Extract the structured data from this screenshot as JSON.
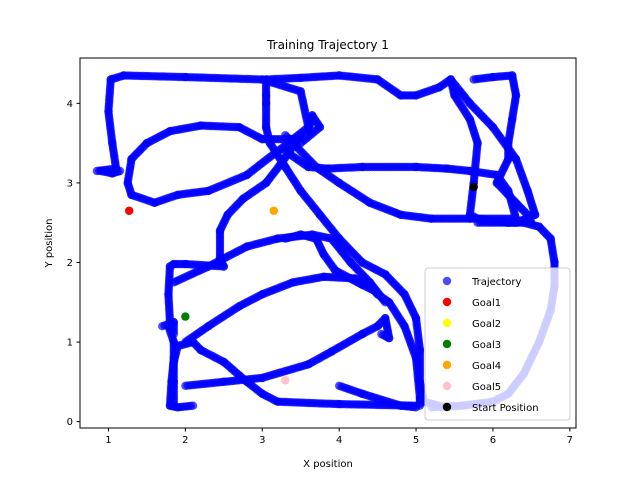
{
  "chart_data": {
    "type": "scatter",
    "title": "Training Trajectory 1",
    "xlabel": "X position",
    "ylabel": "Y position",
    "xlim": [
      0.63,
      7.08
    ],
    "ylim": [
      -0.08,
      4.57
    ],
    "xticks": [
      "1",
      "2",
      "3",
      "4",
      "5",
      "6",
      "7"
    ],
    "yticks": [
      "0",
      "1",
      "2",
      "3",
      "4"
    ],
    "xtick_values": [
      1,
      2,
      3,
      4,
      5,
      6,
      7
    ],
    "ytick_values": [
      0,
      1,
      2,
      3,
      4
    ],
    "grid": false,
    "legend_position": "lower-right",
    "trajectory": {
      "name": "Trajectory",
      "color": "#0000ff",
      "alpha": 0.7,
      "paths": [
        [
          [
            0.85,
            3.15
          ],
          [
            1.1,
            3.18
          ],
          [
            1.05,
            3.5
          ],
          [
            1.0,
            3.9
          ],
          [
            1.03,
            4.3
          ],
          [
            1.2,
            4.35
          ],
          [
            2.0,
            4.33
          ],
          [
            3.0,
            4.3
          ],
          [
            3.5,
            4.15
          ],
          [
            3.6,
            3.7
          ],
          [
            3.4,
            3.55
          ],
          [
            3.0,
            3.55
          ],
          [
            2.7,
            3.7
          ],
          [
            2.2,
            3.72
          ],
          [
            1.8,
            3.65
          ],
          [
            1.5,
            3.5
          ],
          [
            1.3,
            3.3
          ],
          [
            1.25,
            3.0
          ],
          [
            1.3,
            2.85
          ],
          [
            1.6,
            2.75
          ],
          [
            1.9,
            2.85
          ],
          [
            2.3,
            2.9
          ],
          [
            2.8,
            3.1
          ],
          [
            3.2,
            3.4
          ],
          [
            3.5,
            3.6
          ]
        ],
        [
          [
            3.5,
            3.6
          ],
          [
            3.25,
            3.25
          ],
          [
            3.05,
            3.0
          ],
          [
            2.75,
            2.8
          ],
          [
            2.55,
            2.6
          ],
          [
            2.45,
            2.4
          ],
          [
            2.45,
            2.05
          ],
          [
            2.5,
            1.95
          ],
          [
            2.0,
            1.98
          ],
          [
            1.85,
            1.98
          ],
          [
            1.8,
            1.95
          ],
          [
            1.78,
            1.6
          ],
          [
            1.8,
            1.25
          ],
          [
            1.78,
            1.2
          ],
          [
            1.85,
            1.0
          ],
          [
            1.85,
            0.8
          ],
          [
            1.82,
            0.5
          ],
          [
            1.8,
            0.2
          ],
          [
            1.9,
            0.18
          ],
          [
            2.1,
            0.2
          ]
        ],
        [
          [
            1.85,
            0.2
          ],
          [
            1.85,
            0.5
          ],
          [
            1.85,
            0.75
          ],
          [
            1.9,
            0.95
          ],
          [
            2.1,
            1.0
          ],
          [
            2.2,
            0.9
          ],
          [
            2.5,
            0.75
          ],
          [
            2.8,
            0.5
          ],
          [
            3.0,
            0.35
          ],
          [
            3.2,
            0.25
          ],
          [
            4.0,
            0.22
          ],
          [
            5.0,
            0.2
          ]
        ],
        [
          [
            2.0,
            0.45
          ],
          [
            2.5,
            0.5
          ],
          [
            3.0,
            0.55
          ],
          [
            3.6,
            0.72
          ],
          [
            3.9,
            0.88
          ],
          [
            4.3,
            1.1
          ],
          [
            4.5,
            1.2
          ],
          [
            4.6,
            1.3
          ],
          [
            4.65,
            1.05
          ],
          [
            4.55,
            1.1
          ]
        ],
        [
          [
            4.0,
            0.45
          ],
          [
            4.3,
            0.35
          ],
          [
            4.8,
            0.2
          ],
          [
            5.0,
            0.18
          ]
        ],
        [
          [
            2.0,
            1.0
          ],
          [
            2.3,
            1.2
          ],
          [
            2.7,
            1.45
          ],
          [
            3.0,
            1.6
          ],
          [
            3.4,
            1.75
          ],
          [
            3.8,
            1.82
          ],
          [
            4.2,
            1.8
          ],
          [
            4.35,
            1.75
          ],
          [
            4.5,
            1.6
          ],
          [
            4.65,
            1.5
          ],
          [
            4.85,
            1.2
          ],
          [
            5.0,
            0.8
          ],
          [
            5.05,
            0.3
          ],
          [
            5.05,
            0.2
          ]
        ],
        [
          [
            1.85,
            1.75
          ],
          [
            2.3,
            1.95
          ],
          [
            2.8,
            2.2
          ],
          [
            3.2,
            2.3
          ],
          [
            3.65,
            2.35
          ],
          [
            3.9,
            2.3
          ],
          [
            4.15,
            2.0
          ],
          [
            4.4,
            1.75
          ],
          [
            4.6,
            1.5
          ]
        ],
        [
          [
            3.05,
            4.3
          ],
          [
            3.05,
            4.1
          ],
          [
            3.05,
            4.0
          ],
          [
            3.05,
            3.7
          ],
          [
            3.1,
            3.5
          ],
          [
            3.3,
            3.2
          ],
          [
            3.5,
            2.9
          ],
          [
            3.75,
            2.6
          ],
          [
            4.0,
            2.3
          ],
          [
            4.3,
            2.0
          ],
          [
            4.6,
            1.85
          ],
          [
            4.85,
            1.6
          ],
          [
            5.0,
            1.3
          ],
          [
            5.05,
            0.9
          ],
          [
            5.05,
            0.5
          ],
          [
            5.1,
            0.25
          ],
          [
            5.3,
            0.2
          ]
        ],
        [
          [
            3.05,
            4.3
          ],
          [
            3.5,
            4.32
          ],
          [
            4.0,
            4.35
          ],
          [
            4.5,
            4.3
          ],
          [
            4.8,
            4.1
          ],
          [
            5.0,
            4.1
          ],
          [
            5.3,
            4.2
          ],
          [
            5.45,
            4.3
          ],
          [
            5.5,
            4.1
          ],
          [
            5.7,
            3.8
          ],
          [
            5.8,
            3.5
          ],
          [
            5.75,
            3.0
          ],
          [
            5.7,
            2.6
          ],
          [
            5.8,
            2.55
          ],
          [
            6.2,
            2.5
          ],
          [
            6.4,
            2.5
          ],
          [
            6.6,
            2.45
          ],
          [
            6.75,
            2.3
          ],
          [
            6.8,
            2.0
          ],
          [
            6.8,
            1.7
          ],
          [
            6.75,
            1.4
          ],
          [
            6.6,
            1.0
          ],
          [
            6.4,
            0.6
          ],
          [
            6.2,
            0.35
          ],
          [
            6.0,
            0.25
          ],
          [
            5.6,
            0.2
          ],
          [
            5.2,
            0.18
          ]
        ],
        [
          [
            5.75,
            4.3
          ],
          [
            6.0,
            4.33
          ],
          [
            6.25,
            4.35
          ],
          [
            6.3,
            4.1
          ],
          [
            6.25,
            3.8
          ],
          [
            6.2,
            3.5
          ],
          [
            6.2,
            3.3
          ],
          [
            6.05,
            3.0
          ],
          [
            6.2,
            2.85
          ],
          [
            6.45,
            2.6
          ],
          [
            6.5,
            2.5
          ]
        ],
        [
          [
            5.45,
            4.3
          ],
          [
            5.7,
            4.0
          ],
          [
            6.0,
            3.7
          ],
          [
            6.3,
            3.3
          ],
          [
            6.45,
            2.9
          ],
          [
            6.55,
            2.6
          ],
          [
            6.3,
            2.5
          ],
          [
            5.8,
            2.5
          ]
        ],
        [
          [
            3.3,
            3.6
          ],
          [
            3.7,
            3.2
          ],
          [
            4.0,
            3.0
          ],
          [
            4.4,
            2.75
          ],
          [
            4.8,
            2.6
          ],
          [
            5.2,
            2.55
          ],
          [
            5.7,
            2.55
          ],
          [
            6.3,
            2.55
          ]
        ],
        [
          [
            3.5,
            3.5
          ],
          [
            3.75,
            3.7
          ],
          [
            3.65,
            3.85
          ],
          [
            3.6,
            3.65
          ]
        ],
        [
          [
            3.3,
            3.4
          ],
          [
            3.6,
            3.2
          ],
          [
            3.85,
            3.18
          ],
          [
            4.3,
            3.2
          ],
          [
            5.0,
            3.2
          ],
          [
            5.4,
            3.18
          ],
          [
            5.7,
            3.15
          ],
          [
            6.05,
            3.1
          ],
          [
            6.2,
            2.9
          ],
          [
            6.3,
            2.55
          ]
        ],
        [
          [
            3.3,
            2.3
          ],
          [
            3.5,
            2.35
          ],
          [
            3.7,
            2.3
          ],
          [
            3.8,
            2.1
          ],
          [
            3.95,
            1.9
          ],
          [
            4.3,
            1.72
          ],
          [
            4.45,
            1.65
          ]
        ],
        [
          [
            1.7,
            1.2
          ],
          [
            1.85,
            1.25
          ],
          [
            1.85,
            1.1
          ]
        ],
        [
          [
            0.9,
            3.15
          ],
          [
            1.05,
            3.12
          ],
          [
            1.15,
            3.15
          ]
        ]
      ]
    },
    "points": [
      {
        "name": "Goal1",
        "x": 1.27,
        "y": 2.65,
        "color": "#ff0000"
      },
      {
        "name": "Goal2",
        "x": 3.15,
        "y": 2.65,
        "color": "#ffff00"
      },
      {
        "name": "Goal3",
        "x": 2.0,
        "y": 1.32,
        "color": "#008000"
      },
      {
        "name": "Goal4",
        "x": 3.15,
        "y": 2.65,
        "color": "#ffa500"
      },
      {
        "name": "Goal5",
        "x": 3.3,
        "y": 0.52,
        "color": "#ffc0cb"
      },
      {
        "name": "Start Position",
        "x": 5.75,
        "y": 2.95,
        "color": "#000000"
      }
    ],
    "legend": [
      "Trajectory",
      "Goal1",
      "Goal2",
      "Goal3",
      "Goal4",
      "Goal5",
      "Start Position"
    ]
  }
}
